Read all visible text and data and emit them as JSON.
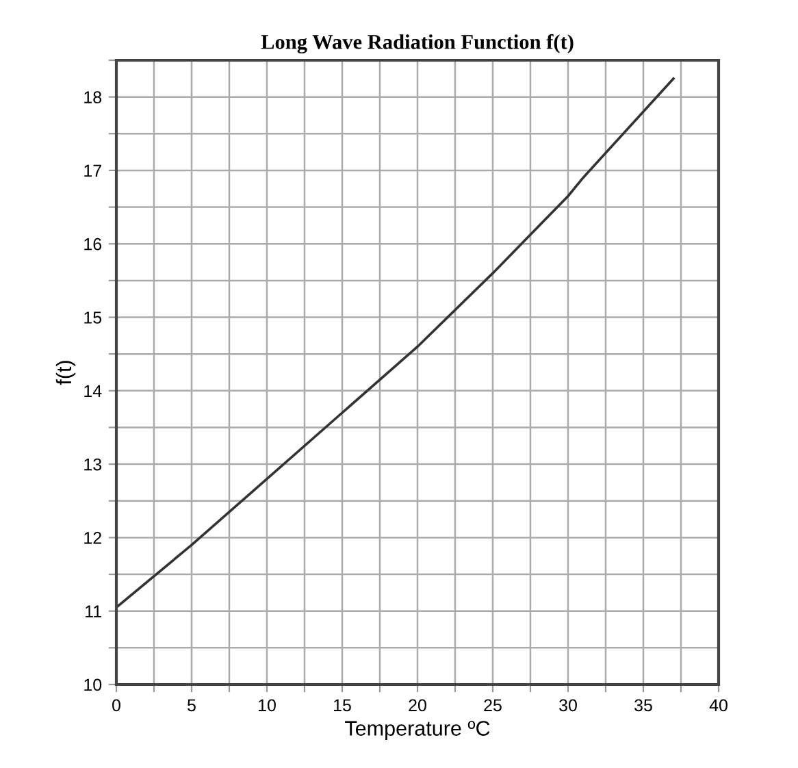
{
  "chart_data": {
    "type": "line",
    "title": "Long Wave Radiation Function f(t)",
    "xlabel": "Temperature ºC",
    "ylabel": "f(t)",
    "x": [
      0,
      5,
      10,
      15,
      20,
      25,
      30,
      31,
      37
    ],
    "series": [
      {
        "color": "#333333",
        "values": [
          11.05,
          11.9,
          12.8,
          13.7,
          14.6,
          15.6,
          16.65,
          16.9,
          18.25
        ]
      }
    ],
    "xlim": [
      0,
      40
    ],
    "ylim": [
      10,
      18.5
    ],
    "xticks": [
      0,
      {
        "value": 2.5,
        "label": null
      },
      5,
      {
        "value": 7.5,
        "label": null
      },
      10,
      {
        "value": 12.5,
        "label": null
      },
      15,
      {
        "value": 17.5,
        "label": null
      },
      20,
      {
        "value": 22.5,
        "label": null
      },
      25,
      {
        "value": 27.5,
        "label": null
      },
      30,
      {
        "value": 32.5,
        "label": null
      },
      35,
      {
        "value": 37.5,
        "label": null
      },
      40
    ],
    "yticks": [
      10,
      {
        "value": 10.5,
        "label": null
      },
      11,
      {
        "value": 11.5,
        "label": null
      },
      12,
      {
        "value": 12.5,
        "label": null
      },
      13,
      {
        "value": 13.5,
        "label": null
      },
      14,
      {
        "value": 14.5,
        "label": null
      },
      15,
      {
        "value": 15.5,
        "label": null
      },
      16,
      {
        "value": 16.5,
        "label": null
      },
      17,
      {
        "value": 17.5,
        "label": null
      },
      18,
      {
        "value": 18.5,
        "label": null
      }
    ],
    "grid": true,
    "legend": false,
    "marker": "none",
    "line_style": "solid"
  }
}
